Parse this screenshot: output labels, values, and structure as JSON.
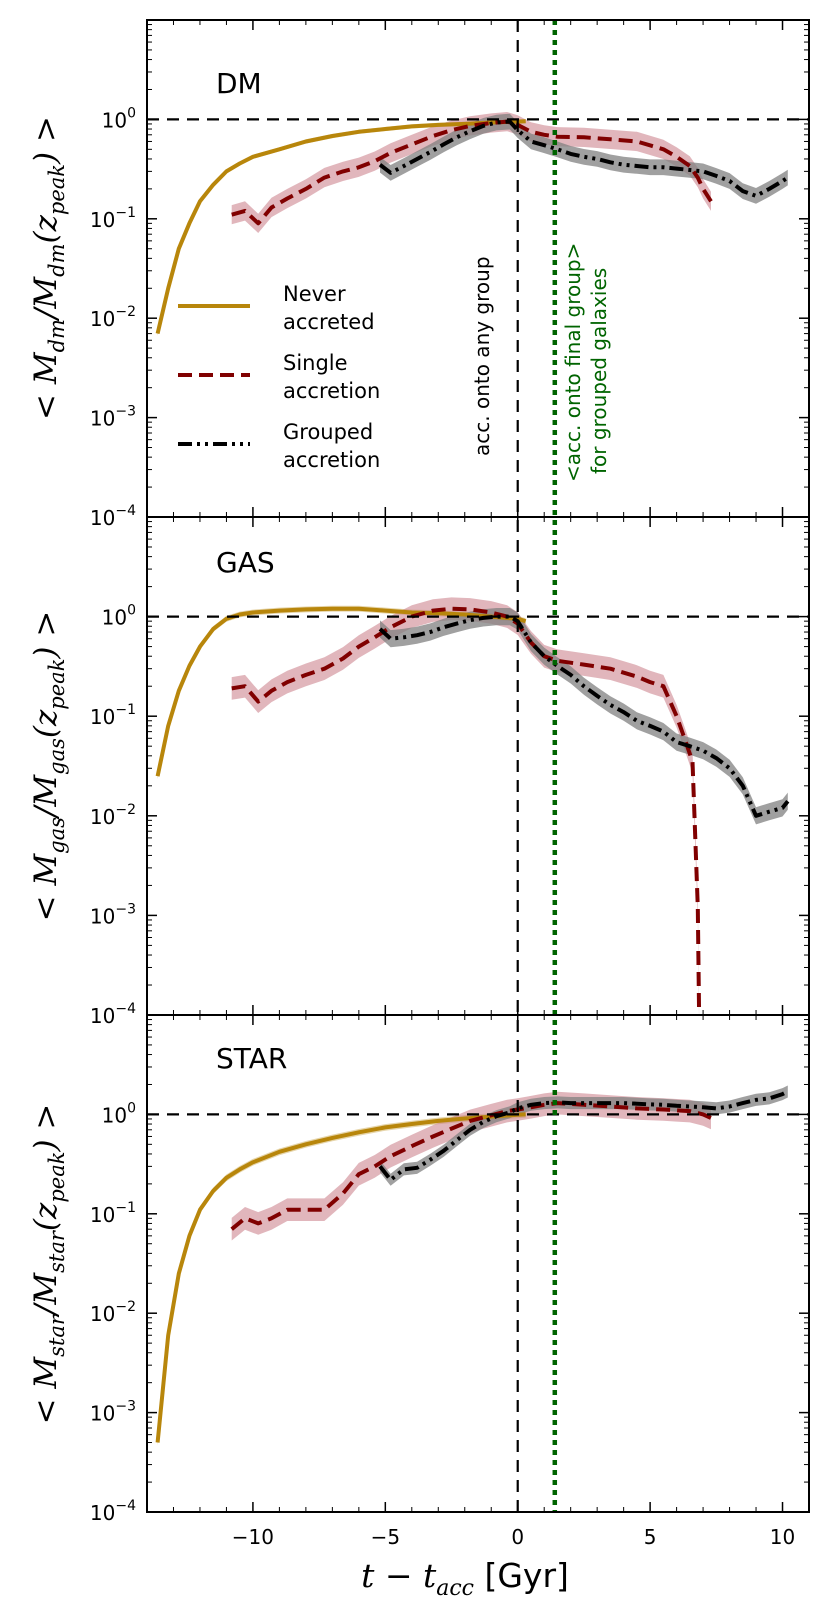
{
  "colors": {
    "never": "#b8860b",
    "single": "#800000",
    "grouped": "#000000",
    "grouped_band": "#808080",
    "single_band": "#c97a85",
    "green_line": "#006400",
    "reference": "#000000"
  },
  "chart_data": {
    "type": "line",
    "xlabel": "t − t",
    "xlabel_sub": "acc",
    "xlabel_unit": " [Gyr]",
    "xlim": [
      -14,
      11
    ],
    "x_ticks": [
      -10,
      -5,
      0,
      5,
      10
    ],
    "x_tick_labels": [
      "−10",
      "−5",
      "0",
      "5",
      "10"
    ],
    "ylim_log10": [
      -4,
      1
    ],
    "y_tick_exponents": [
      -4,
      -3,
      -2,
      -1,
      0
    ],
    "y_tick_labels": [
      {
        "base": "10",
        "exp": "−4"
      },
      {
        "base": "10",
        "exp": "−3"
      },
      {
        "base": "10",
        "exp": "−2"
      },
      {
        "base": "10",
        "exp": "−1"
      },
      {
        "base": "10",
        "exp": "0"
      }
    ],
    "vline_acc_any_group": 0,
    "vline_acc_final_group": 1.4,
    "hline_reference": 1,
    "legend": [
      {
        "key": "never",
        "line1": "Never",
        "line2": "accreted",
        "style": "solid"
      },
      {
        "key": "single",
        "line1": "Single",
        "line2": "accretion",
        "style": "dashed"
      },
      {
        "key": "grouped",
        "line1": "Grouped",
        "line2": "accretion",
        "style": "dashdotdot"
      }
    ],
    "annotations": {
      "acc_any_group": "acc. onto any group",
      "final_group_line1": "<acc. onto final group>",
      "final_group_line2": "for grouped galaxies"
    },
    "panels": [
      {
        "id": "dm",
        "label": "DM",
        "ylabel": "< M",
        "ylabel_sub1": "dm",
        "ylabel_mid": "/M",
        "ylabel_sub2": "dm",
        "ylabel_tail": "(z",
        "ylabel_sub3": "peak",
        "ylabel_end": ") >",
        "series": [
          {
            "key": "never",
            "x": [
              -13.6,
              -13.2,
              -12.8,
              -12.4,
              -12.0,
              -11.5,
              -11.0,
              -10.5,
              -10.0,
              -9.0,
              -8.0,
              -7.0,
              -6.0,
              -5.0,
              -4.0,
              -3.0,
              -2.0,
              -1.0,
              0.0,
              0.3
            ],
            "y": [
              0.007,
              0.02,
              0.05,
              0.09,
              0.15,
              0.22,
              0.3,
              0.36,
              0.42,
              0.5,
              0.6,
              0.68,
              0.75,
              0.8,
              0.85,
              0.88,
              0.9,
              0.93,
              0.95,
              0.96
            ],
            "band": 0.05
          },
          {
            "key": "single",
            "x": [
              -10.8,
              -10.3,
              -9.8,
              -9.3,
              -8.7,
              -8.0,
              -7.3,
              -6.6,
              -6.0,
              -5.4,
              -4.8,
              -4.0,
              -3.2,
              -2.5,
              -1.8,
              -1.0,
              -0.4,
              0.0,
              0.5,
              1.0,
              1.5,
              2.5,
              3.5,
              4.5,
              5.5,
              6.0,
              6.5,
              6.8,
              7.0,
              7.3
            ],
            "y": [
              0.11,
              0.12,
              0.09,
              0.13,
              0.16,
              0.2,
              0.26,
              0.3,
              0.33,
              0.38,
              0.46,
              0.56,
              0.68,
              0.78,
              0.86,
              0.92,
              0.95,
              0.88,
              0.75,
              0.7,
              0.67,
              0.66,
              0.63,
              0.6,
              0.5,
              0.42,
              0.34,
              0.26,
              0.2,
              0.15
            ],
            "band": 0.25
          },
          {
            "key": "grouped",
            "x": [
              -5.2,
              -4.8,
              -4.3,
              -3.8,
              -3.3,
              -2.8,
              -2.3,
              -1.8,
              -1.3,
              -0.8,
              -0.3,
              0.0,
              0.5,
              1.0,
              1.5,
              2.0,
              2.5,
              3.0,
              3.5,
              4.0,
              4.5,
              5.0,
              5.5,
              6.0,
              6.5,
              7.0,
              7.5,
              8.0,
              8.5,
              9.0,
              9.5,
              10.0,
              10.2
            ],
            "y": [
              0.35,
              0.29,
              0.34,
              0.4,
              0.47,
              0.56,
              0.66,
              0.76,
              0.86,
              0.93,
              0.95,
              0.78,
              0.6,
              0.55,
              0.5,
              0.45,
              0.42,
              0.4,
              0.37,
              0.35,
              0.34,
              0.33,
              0.33,
              0.32,
              0.31,
              0.3,
              0.27,
              0.24,
              0.19,
              0.17,
              0.2,
              0.24,
              0.26
            ],
            "band": 0.2
          }
        ]
      },
      {
        "id": "gas",
        "label": "GAS",
        "ylabel": "< M",
        "ylabel_sub1": "gas",
        "ylabel_mid": "/M",
        "ylabel_sub2": "gas",
        "ylabel_tail": "(z",
        "ylabel_sub3": "peak",
        "ylabel_end": ") >",
        "series": [
          {
            "key": "never",
            "x": [
              -13.6,
              -13.2,
              -12.8,
              -12.4,
              -12.0,
              -11.5,
              -11.0,
              -10.5,
              -10.0,
              -9.0,
              -8.0,
              -7.0,
              -6.0,
              -5.0,
              -4.0,
              -3.0,
              -2.0,
              -1.0,
              0.0,
              0.3
            ],
            "y": [
              0.025,
              0.08,
              0.18,
              0.32,
              0.5,
              0.75,
              0.95,
              1.05,
              1.1,
              1.15,
              1.18,
              1.2,
              1.2,
              1.15,
              1.1,
              1.08,
              1.05,
              1.0,
              0.95,
              0.9
            ],
            "band": 0.07
          },
          {
            "key": "single",
            "x": [
              -10.8,
              -10.3,
              -9.8,
              -9.3,
              -8.7,
              -8.0,
              -7.3,
              -6.6,
              -6.0,
              -5.4,
              -4.8,
              -4.0,
              -3.2,
              -2.5,
              -1.8,
              -1.0,
              -0.4,
              0.0,
              0.5,
              1.0,
              1.5,
              2.5,
              3.5,
              4.5,
              5.0,
              5.5,
              6.0,
              6.3,
              6.6,
              6.8,
              6.85
            ],
            "y": [
              0.19,
              0.2,
              0.14,
              0.18,
              0.22,
              0.26,
              0.3,
              0.38,
              0.5,
              0.62,
              0.78,
              1.0,
              1.15,
              1.2,
              1.18,
              1.1,
              1.0,
              0.85,
              0.55,
              0.4,
              0.36,
              0.33,
              0.3,
              0.25,
              0.22,
              0.2,
              0.1,
              0.06,
              0.035,
              0.0012,
              0.0001
            ],
            "band": 0.3
          },
          {
            "key": "grouped",
            "x": [
              -5.2,
              -4.8,
              -4.3,
              -3.8,
              -3.3,
              -2.8,
              -2.3,
              -1.8,
              -1.3,
              -0.8,
              -0.3,
              0.0,
              0.5,
              1.0,
              1.5,
              2.0,
              2.5,
              3.0,
              3.5,
              4.0,
              4.5,
              5.0,
              5.5,
              6.0,
              6.5,
              7.0,
              7.5,
              8.0,
              8.5,
              9.0,
              9.5,
              10.0,
              10.2
            ],
            "y": [
              0.75,
              0.6,
              0.62,
              0.65,
              0.7,
              0.78,
              0.85,
              0.92,
              0.97,
              1.0,
              1.0,
              0.9,
              0.55,
              0.4,
              0.32,
              0.26,
              0.2,
              0.16,
              0.13,
              0.11,
              0.09,
              0.08,
              0.07,
              0.055,
              0.05,
              0.045,
              0.038,
              0.03,
              0.02,
              0.01,
              0.011,
              0.012,
              0.014
            ],
            "band": 0.22
          }
        ]
      },
      {
        "id": "star",
        "label": "STAR",
        "ylabel": "< M",
        "ylabel_sub1": "star",
        "ylabel_mid": "/M",
        "ylabel_sub2": "star",
        "ylabel_tail": "(z",
        "ylabel_sub3": "peak",
        "ylabel_end": ") >",
        "series": [
          {
            "key": "never",
            "x": [
              -13.6,
              -13.2,
              -12.8,
              -12.4,
              -12.0,
              -11.5,
              -11.0,
              -10.5,
              -10.0,
              -9.0,
              -8.0,
              -7.0,
              -6.0,
              -5.0,
              -4.0,
              -3.0,
              -2.0,
              -1.0,
              0.0,
              0.3
            ],
            "y": [
              0.0005,
              0.006,
              0.025,
              0.06,
              0.11,
              0.17,
              0.23,
              0.28,
              0.33,
              0.42,
              0.5,
              0.58,
              0.66,
              0.74,
              0.8,
              0.86,
              0.91,
              0.95,
              0.99,
              1.0
            ],
            "band": 0.08
          },
          {
            "key": "single",
            "x": [
              -10.8,
              -10.3,
              -9.8,
              -9.3,
              -8.7,
              -8.0,
              -7.3,
              -6.6,
              -6.0,
              -5.4,
              -4.8,
              -4.0,
              -3.2,
              -2.5,
              -1.8,
              -1.0,
              -0.4,
              0.0,
              0.5,
              1.0,
              1.5,
              2.5,
              3.5,
              4.5,
              5.5,
              6.0,
              6.5,
              7.0,
              7.3
            ],
            "y": [
              0.07,
              0.09,
              0.08,
              0.09,
              0.11,
              0.11,
              0.11,
              0.16,
              0.25,
              0.3,
              0.38,
              0.48,
              0.6,
              0.72,
              0.86,
              0.98,
              1.08,
              1.12,
              1.18,
              1.25,
              1.3,
              1.25,
              1.2,
              1.15,
              1.12,
              1.1,
              1.08,
              1.0,
              0.92
            ],
            "band": 0.3
          },
          {
            "key": "grouped",
            "x": [
              -5.2,
              -4.8,
              -4.3,
              -3.8,
              -3.3,
              -2.8,
              -2.3,
              -1.8,
              -1.3,
              -0.8,
              -0.3,
              0.0,
              0.5,
              1.0,
              1.5,
              2.0,
              2.5,
              3.0,
              3.5,
              4.0,
              4.5,
              5.0,
              5.5,
              6.0,
              6.5,
              7.0,
              7.5,
              8.0,
              8.5,
              9.0,
              9.5,
              10.0,
              10.2
            ],
            "y": [
              0.3,
              0.22,
              0.28,
              0.29,
              0.35,
              0.43,
              0.55,
              0.7,
              0.84,
              0.96,
              1.05,
              1.15,
              1.25,
              1.3,
              1.32,
              1.3,
              1.3,
              1.3,
              1.3,
              1.3,
              1.28,
              1.26,
              1.25,
              1.22,
              1.2,
              1.18,
              1.15,
              1.2,
              1.3,
              1.4,
              1.45,
              1.6,
              1.7
            ],
            "band": 0.15
          }
        ]
      }
    ]
  }
}
